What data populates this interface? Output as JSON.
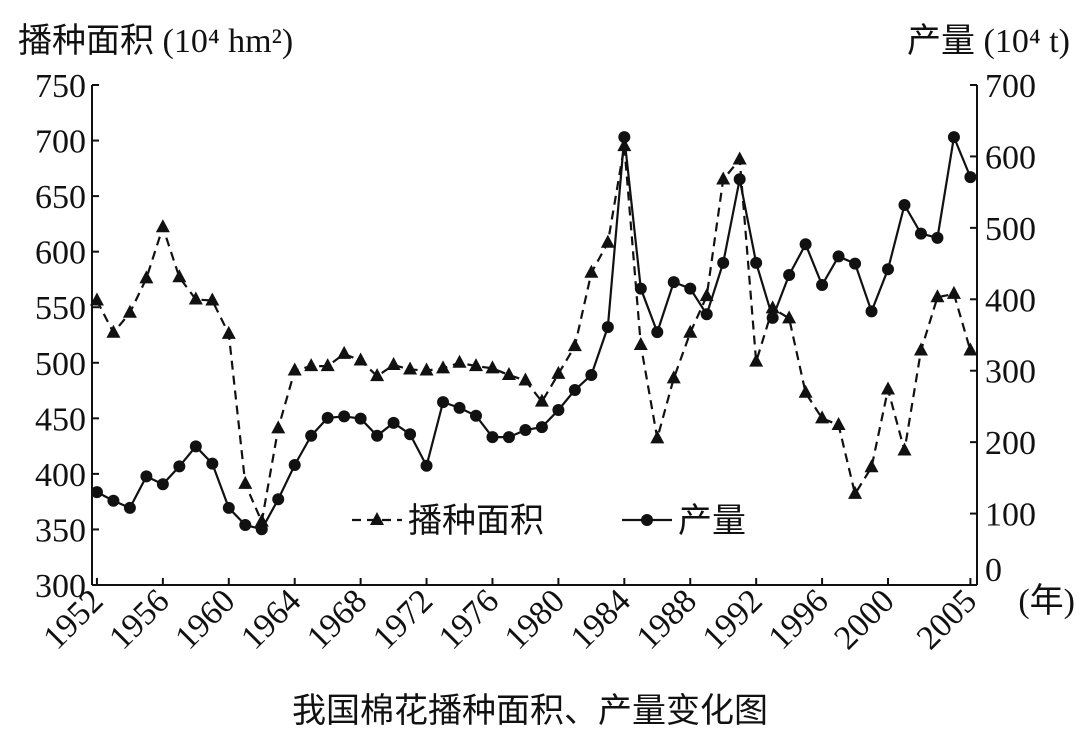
{
  "chart_data": {
    "type": "line",
    "title": "我国棉花播种面积、产量变化图",
    "y_label": "播种面积 (10⁴ hm²)",
    "y2_label": "产量 (10⁴ t)",
    "x_label": "(年)",
    "x": [
      1952,
      1953,
      1954,
      1955,
      1956,
      1957,
      1958,
      1959,
      1960,
      1961,
      1962,
      1963,
      1964,
      1965,
      1966,
      1967,
      1968,
      1969,
      1970,
      1971,
      1972,
      1973,
      1974,
      1975,
      1976,
      1977,
      1978,
      1979,
      1980,
      1981,
      1982,
      1983,
      1984,
      1985,
      1986,
      1987,
      1988,
      1989,
      1990,
      1991,
      1992,
      1993,
      1994,
      1995,
      1996,
      1997,
      1998,
      1999,
      2000,
      2001,
      2002,
      2003,
      2004,
      2005
    ],
    "series": [
      {
        "name": "播种面积",
        "color": "#111111",
        "dash": true,
        "marker": "triangle",
        "values": [
          556,
          527,
          545,
          576,
          622,
          577,
          557,
          556,
          526,
          391,
          357,
          441,
          493,
          497,
          497,
          508,
          502,
          488,
          498,
          494,
          493,
          495,
          500,
          497,
          495,
          489,
          484,
          465,
          490,
          515,
          581,
          608,
          695,
          516,
          432,
          486,
          527,
          560,
          665,
          683,
          501,
          549,
          540,
          473,
          450,
          444,
          382,
          406,
          476,
          421,
          511,
          559,
          562,
          511
        ]
      },
      {
        "name": "产量",
        "color": "#111111",
        "dash": false,
        "marker": "circle",
        "axis": "y2",
        "values": [
          130,
          118,
          108,
          152,
          141,
          166,
          194,
          170,
          108,
          84,
          78,
          120,
          168,
          209,
          234,
          236,
          233,
          209,
          227,
          211,
          167,
          256,
          248,
          237,
          207,
          207,
          217,
          221,
          245,
          273,
          294,
          361,
          627,
          415,
          354,
          424,
          415,
          379,
          451,
          568,
          451,
          374,
          434,
          477,
          420,
          460,
          450,
          383,
          442,
          532,
          492,
          486,
          627,
          571
        ]
      }
    ],
    "xlim": [
      1951.7,
      2005.4
    ],
    "xticks": [
      1952,
      1956,
      1960,
      1964,
      1968,
      1972,
      1976,
      1980,
      1984,
      1988,
      1992,
      1996,
      2000,
      2005
    ],
    "ylim": [
      300,
      750
    ],
    "yticks": [
      300,
      350,
      400,
      450,
      500,
      550,
      600,
      650,
      700,
      750
    ],
    "y2lim": [
      0,
      700
    ],
    "y2ticks": [
      0,
      100,
      200,
      300,
      400,
      500,
      600,
      700
    ],
    "legend": "center"
  }
}
